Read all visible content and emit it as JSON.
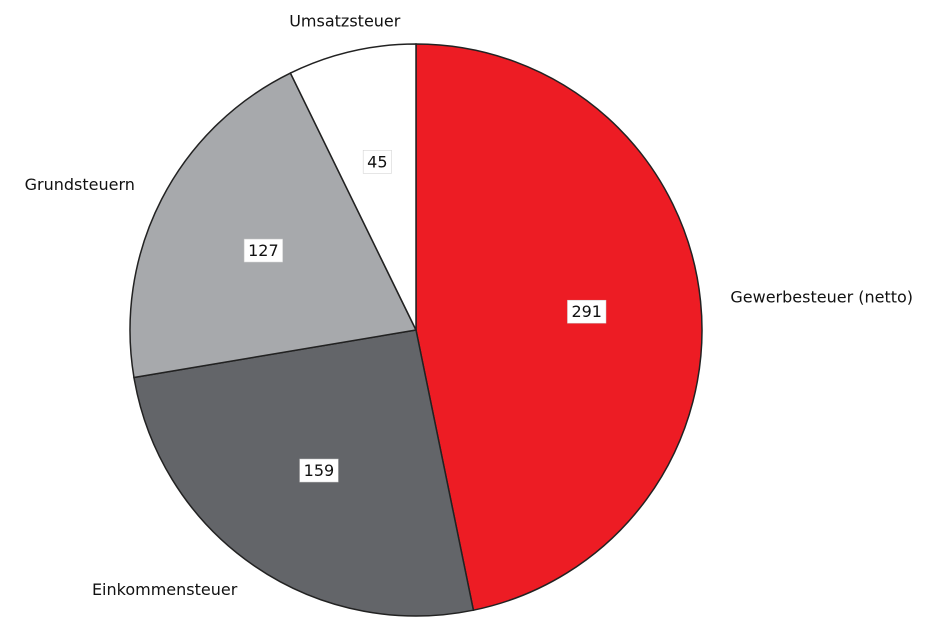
{
  "chart_data": {
    "type": "pie",
    "categories": [
      "Gewerbesteuer (netto)",
      "Einkommensteuer",
      "Grundsteuern",
      "Umsatzsteuer"
    ],
    "values": [
      291,
      159,
      127,
      45
    ],
    "colors": [
      "#ed1c24",
      "#636569",
      "#a7a9ac",
      "#ffffff"
    ]
  }
}
